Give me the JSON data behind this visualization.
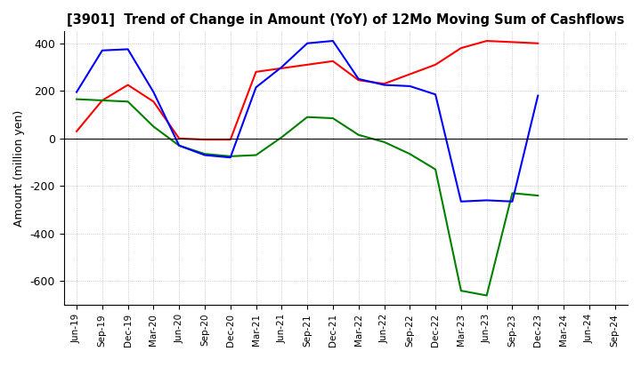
{
  "title": "[3901]  Trend of Change in Amount (YoY) of 12Mo Moving Sum of Cashflows",
  "ylabel": "Amount (million yen)",
  "x_labels": [
    "Jun-19",
    "Sep-19",
    "Dec-19",
    "Mar-20",
    "Jun-20",
    "Sep-20",
    "Dec-20",
    "Mar-21",
    "Jun-21",
    "Sep-21",
    "Dec-21",
    "Mar-22",
    "Jun-22",
    "Sep-22",
    "Dec-22",
    "Mar-23",
    "Jun-23",
    "Sep-23",
    "Dec-23",
    "Mar-24",
    "Jun-24",
    "Sep-24"
  ],
  "operating": [
    30,
    160,
    225,
    155,
    0,
    -5,
    -5,
    280,
    295,
    310,
    325,
    245,
    230,
    270,
    310,
    380,
    410,
    405,
    400,
    null,
    null,
    null
  ],
  "investing": [
    165,
    160,
    155,
    50,
    -30,
    -65,
    -75,
    -70,
    5,
    90,
    85,
    15,
    -15,
    -65,
    -130,
    -640,
    -660,
    -230,
    -240,
    null,
    null,
    null
  ],
  "free": [
    195,
    370,
    375,
    195,
    -30,
    -70,
    -80,
    215,
    300,
    400,
    410,
    250,
    225,
    220,
    185,
    -265,
    -260,
    -265,
    180,
    null,
    null,
    null
  ],
  "operating_color": "#ff0000",
  "investing_color": "#008000",
  "free_color": "#0000ff",
  "ylim": [
    -700,
    450
  ],
  "yticks": [
    -600,
    -400,
    -200,
    0,
    200,
    400
  ],
  "background_color": "#ffffff",
  "grid_color": "#aaaaaa"
}
